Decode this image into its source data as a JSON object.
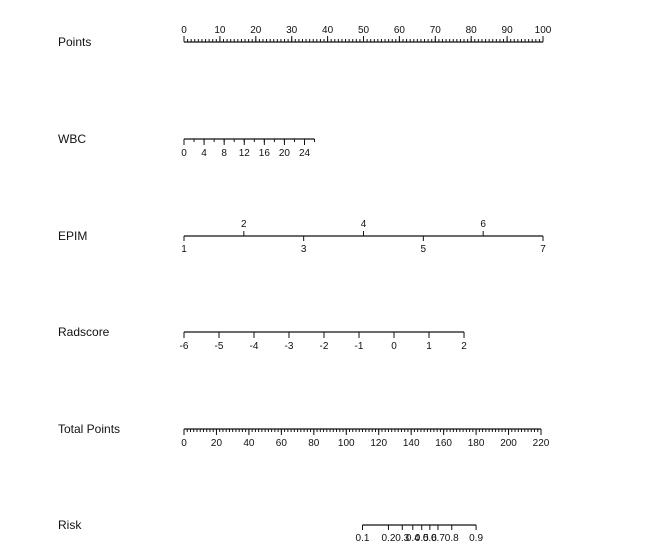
{
  "chart_data": {
    "type": "nomogram",
    "rows": [
      {
        "name": "Points",
        "min": 0,
        "max": 100,
        "labels": [
          0,
          10,
          20,
          30,
          40,
          50,
          60,
          70,
          80,
          90,
          100
        ],
        "minor_step": 1,
        "label_side": "above"
      },
      {
        "name": "WBC",
        "min": 0,
        "max": 26,
        "labels": [
          0,
          4,
          8,
          12,
          16,
          20,
          24
        ],
        "minor_step": 2,
        "label_side": "below"
      },
      {
        "name": "EPIM",
        "min": 1,
        "max": 7,
        "labels_above": [
          2,
          4,
          6
        ],
        "labels_below": [
          1,
          3,
          5,
          7
        ],
        "minor_step": 1
      },
      {
        "name": "Radscore",
        "min": -6,
        "max": 2,
        "labels": [
          -6,
          -5,
          -4,
          -3,
          -2,
          -1,
          0,
          1,
          2
        ],
        "minor_step": 1,
        "label_side": "below"
      },
      {
        "name": "Total Points",
        "min": 0,
        "max": 220,
        "labels": [
          0,
          20,
          40,
          60,
          80,
          100,
          120,
          140,
          160,
          180,
          200,
          220
        ],
        "minor_step": 2,
        "label_side": "below"
      },
      {
        "name": "Risk",
        "labels": [
          "0.1",
          "0.2",
          "0.3",
          "0.4",
          "0.5",
          "0.6",
          "0.7",
          "0.8",
          "0.9"
        ],
        "total_points_at_labels": [
          110,
          126,
          134.5,
          141,
          146.5,
          151.5,
          156.5,
          165,
          180
        ],
        "label_side": "below"
      }
    ],
    "points_per_unit": {
      "WBC": 1.4,
      "EPIM": 16.667,
      "Radscore": 9.75,
      "Total Points": 0.4545
    }
  }
}
